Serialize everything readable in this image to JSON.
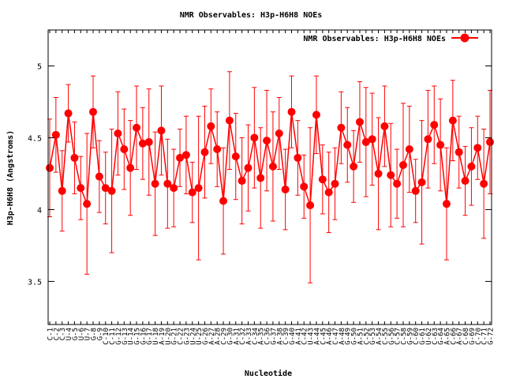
{
  "chart_data": {
    "type": "line",
    "title": "NMR Observables: H3p-H6H8 NOEs",
    "xlabel": "Nucleotide",
    "ylabel": "H3p-H6H8 (Angstroms)",
    "ylim": [
      3.2,
      5.25
    ],
    "yticks": [
      "3.5",
      "4",
      "4.5",
      "5"
    ],
    "ytick_values": [
      3.5,
      4,
      4.5,
      5
    ],
    "grid": false,
    "legend_position": "top-right",
    "series": [
      {
        "name": "NMR Observables: H3p-H6H8 NOEs",
        "color": "#ff0000",
        "points": [
          {
            "x": "C-1",
            "y": 4.29,
            "err": 0.34
          },
          {
            "x": "C-2",
            "y": 4.52,
            "err": 0.26
          },
          {
            "x": "C-3",
            "y": 4.13,
            "err": 0.28
          },
          {
            "x": "U-4",
            "y": 4.67,
            "err": 0.2
          },
          {
            "x": "G-5",
            "y": 4.36,
            "err": 0.25
          },
          {
            "x": "U-6",
            "y": 4.15,
            "err": 0.22
          },
          {
            "x": "U-7",
            "y": 4.04,
            "err": 0.49
          },
          {
            "x": "G-8",
            "y": 4.68,
            "err": 0.25
          },
          {
            "x": "G-9",
            "y": 4.23,
            "err": 0.25
          },
          {
            "x": "C-10",
            "y": 4.15,
            "err": 0.25
          },
          {
            "x": "C-11",
            "y": 4.13,
            "err": 0.43
          },
          {
            "x": "G-12",
            "y": 4.53,
            "err": 0.29
          },
          {
            "x": "G-13",
            "y": 4.42,
            "err": 0.28
          },
          {
            "x": "U-14",
            "y": 4.29,
            "err": 0.33
          },
          {
            "x": "G-15",
            "y": 4.57,
            "err": 0.29
          },
          {
            "x": "G-16",
            "y": 4.46,
            "err": 0.25
          },
          {
            "x": "G-17",
            "y": 4.47,
            "err": 0.37
          },
          {
            "x": "U-18",
            "y": 4.18,
            "err": 0.36
          },
          {
            "x": "A-19",
            "y": 4.55,
            "err": 0.31
          },
          {
            "x": "U-20",
            "y": 4.18,
            "err": 0.31
          },
          {
            "x": "G-21",
            "y": 4.15,
            "err": 0.27
          },
          {
            "x": "C-22",
            "y": 4.36,
            "err": 0.2
          },
          {
            "x": "G-23",
            "y": 4.38,
            "err": 0.27
          },
          {
            "x": "U-24",
            "y": 4.12,
            "err": 0.21
          },
          {
            "x": "U-25",
            "y": 4.15,
            "err": 0.5
          },
          {
            "x": "G-26",
            "y": 4.4,
            "err": 0.32
          },
          {
            "x": "A-27",
            "y": 4.58,
            "err": 0.26
          },
          {
            "x": "A-28",
            "y": 4.42,
            "err": 0.26
          },
          {
            "x": "C-29",
            "y": 4.06,
            "err": 0.37
          },
          {
            "x": "G-30",
            "y": 4.62,
            "err": 0.34
          },
          {
            "x": "A-31",
            "y": 4.37,
            "err": 0.3
          },
          {
            "x": "C-32",
            "y": 4.2,
            "err": 0.3
          },
          {
            "x": "A-33",
            "y": 4.29,
            "err": 0.3
          },
          {
            "x": "C-34",
            "y": 4.5,
            "err": 0.35
          },
          {
            "x": "A-35",
            "y": 4.22,
            "err": 0.35
          },
          {
            "x": "C-36",
            "y": 4.48,
            "err": 0.35
          },
          {
            "x": "G-37",
            "y": 4.3,
            "err": 0.38
          },
          {
            "x": "A-38",
            "y": 4.53,
            "err": 0.25
          },
          {
            "x": "C-39",
            "y": 4.14,
            "err": 0.28
          },
          {
            "x": "G-40",
            "y": 4.68,
            "err": 0.25
          },
          {
            "x": "A-41",
            "y": 4.36,
            "err": 0.26
          },
          {
            "x": "C-42",
            "y": 4.16,
            "err": 0.22
          },
          {
            "x": "U-43",
            "y": 4.03,
            "err": 0.54
          },
          {
            "x": "A-44",
            "y": 4.66,
            "err": 0.27
          },
          {
            "x": "C-45",
            "y": 4.21,
            "err": 0.24
          },
          {
            "x": "A-46",
            "y": 4.12,
            "err": 0.28
          },
          {
            "x": "C-47",
            "y": 4.18,
            "err": 0.25
          },
          {
            "x": "A-48",
            "y": 4.57,
            "err": 0.25
          },
          {
            "x": "G-49",
            "y": 4.45,
            "err": 0.26
          },
          {
            "x": "G-50",
            "y": 4.3,
            "err": 0.25
          },
          {
            "x": "A-51",
            "y": 4.61,
            "err": 0.28
          },
          {
            "x": "C-52",
            "y": 4.47,
            "err": 0.38
          },
          {
            "x": "G-53",
            "y": 4.49,
            "err": 0.32
          },
          {
            "x": "A-54",
            "y": 4.25,
            "err": 0.39
          },
          {
            "x": "C-55",
            "y": 4.58,
            "err": 0.28
          },
          {
            "x": "G-56",
            "y": 4.24,
            "err": 0.36
          },
          {
            "x": "C-57",
            "y": 4.18,
            "err": 0.24
          },
          {
            "x": "C-58",
            "y": 4.31,
            "err": 0.43
          },
          {
            "x": "G-59",
            "y": 4.42,
            "err": 0.3
          },
          {
            "x": "C-60",
            "y": 4.13,
            "err": 0.22
          },
          {
            "x": "G-61",
            "y": 4.19,
            "err": 0.43
          },
          {
            "x": "U-62",
            "y": 4.49,
            "err": 0.34
          },
          {
            "x": "C-63",
            "y": 4.59,
            "err": 0.27
          },
          {
            "x": "G-64",
            "y": 4.45,
            "err": 0.32
          },
          {
            "x": "A-65",
            "y": 4.04,
            "err": 0.39
          },
          {
            "x": "C-66",
            "y": 4.62,
            "err": 0.28
          },
          {
            "x": "A-67",
            "y": 4.4,
            "err": 0.25
          },
          {
            "x": "C-68",
            "y": 4.2,
            "err": 0.24
          },
          {
            "x": "G-69",
            "y": 4.3,
            "err": 0.27
          },
          {
            "x": "C-70",
            "y": 4.43,
            "err": 0.22
          },
          {
            "x": "C-71",
            "y": 4.18,
            "err": 0.38
          },
          {
            "x": "G-72",
            "y": 4.47,
            "err": 0.36
          }
        ]
      }
    ]
  }
}
